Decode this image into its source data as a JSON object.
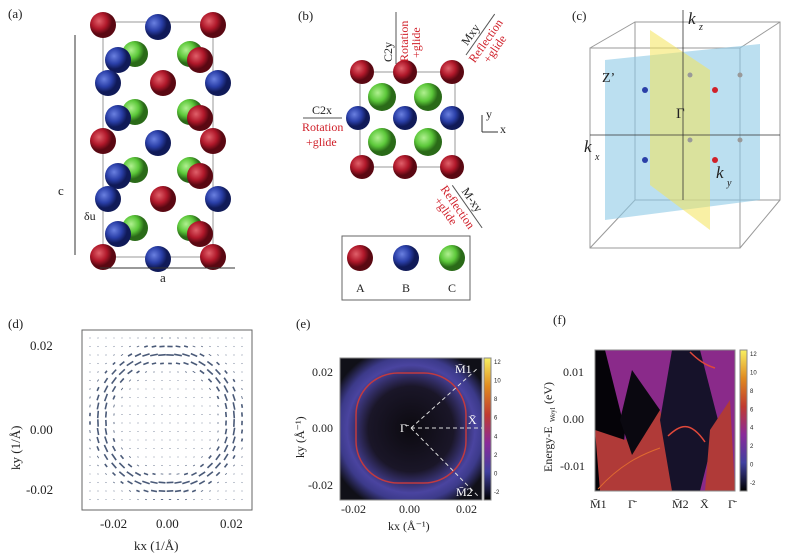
{
  "panels": {
    "a": {
      "label": "(a)",
      "c_label": "c",
      "a_label": "a",
      "du_label": "δu"
    },
    "b": {
      "label": "(b)",
      "c2y": {
        "op": "C2y",
        "text1": "Rotation",
        "text2": "+glide"
      },
      "mxy": {
        "op": "Mxy",
        "text1": "Reflection",
        "text2": "+glide"
      },
      "c2x": {
        "op": "C2x",
        "text1": "Rotation",
        "text2": "+glide"
      },
      "m_xy": {
        "op": "M-xy",
        "text1": "Reflection",
        "text2": "+glide"
      },
      "axes": {
        "x": "x",
        "y": "y"
      },
      "legend": [
        {
          "name": "A",
          "color": "#b0182a"
        },
        {
          "name": "B",
          "color": "#2a3fa8"
        },
        {
          "name": "C",
          "color": "#5cc83a"
        }
      ]
    },
    "c": {
      "label": "(c)",
      "kz": "k",
      "kz_sub": "z",
      "kx": "k",
      "kx_sub": "x",
      "ky": "k",
      "ky_sub": "y",
      "gamma": "Γ",
      "zprime": "Z’"
    }
  },
  "chart_data": [
    {
      "panel": "(d)",
      "type": "quiver",
      "xlabel": "kx (1/Å)",
      "ylabel": "ky (1/Å)",
      "xlim": [
        -0.03,
        0.03
      ],
      "ylim": [
        -0.03,
        0.03
      ],
      "xticks": [
        "-0.02",
        "0.00",
        "0.02"
      ],
      "yticks": [
        "0.02",
        "0.00",
        "-0.02"
      ],
      "arrow_color": "#4a5a78"
    },
    {
      "panel": "(e)",
      "type": "heatmap",
      "xlabel": "kx (Å⁻¹)",
      "ylabel": "ky (Å⁻¹)",
      "xlim": [
        -0.025,
        0.025
      ],
      "ylim": [
        -0.025,
        0.025
      ],
      "xticks": [
        "-0.02",
        "0.00",
        "0.02"
      ],
      "yticks": [
        "0.02",
        "0.00",
        "-0.02"
      ],
      "colorbar_ticks": [
        "12",
        "10",
        "8",
        "6",
        "4",
        "2",
        "0",
        "-2"
      ],
      "annotations": [
        "M̄1",
        "Γ̄",
        "X̄",
        "M̄2"
      ]
    },
    {
      "panel": "(f)",
      "type": "heatmap",
      "xlabel": "",
      "ylabel": "Energy-E",
      "ylabel_sub": "Weyl",
      "ylabel_unit": "(eV)",
      "ylim": [
        -0.015,
        0.015
      ],
      "yticks": [
        "0.01",
        "0.00",
        "-0.01"
      ],
      "xticks": [
        "M̄1",
        "Γ̄",
        "M̄2",
        "X̄",
        "Γ̄"
      ],
      "colorbar_ticks": [
        "12",
        "10",
        "8",
        "6",
        "4",
        "2",
        "0",
        "-2"
      ]
    }
  ]
}
